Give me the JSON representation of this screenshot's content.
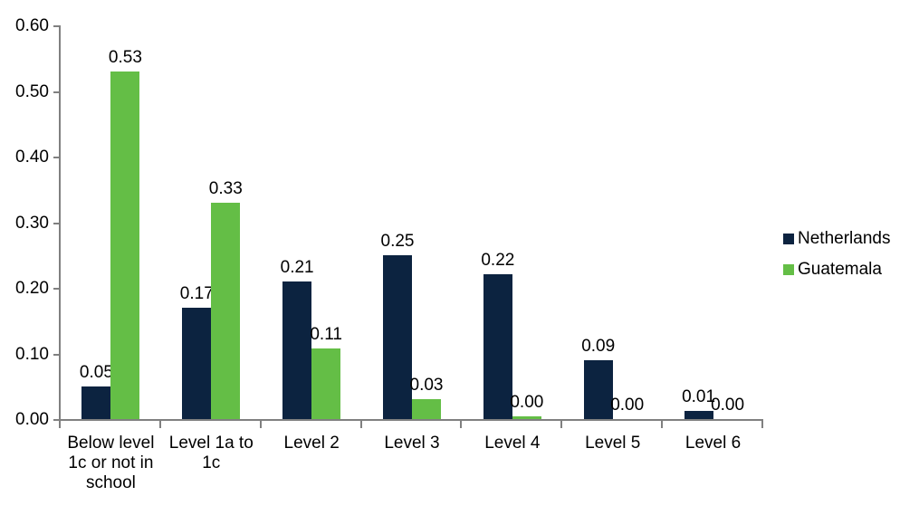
{
  "chart_data": {
    "type": "bar",
    "title": "",
    "xlabel": "",
    "ylabel": "",
    "categories": [
      "Below level 1c or not in school",
      "Level 1a to 1c",
      "Level 2",
      "Level 3",
      "Level 4",
      "Level 5",
      "Level 6"
    ],
    "category_display_lines": [
      [
        "Below level",
        "1c or not in",
        "school"
      ],
      [
        "Level 1a to",
        "1c"
      ],
      [
        "Level 2"
      ],
      [
        "Level 3"
      ],
      [
        "Level 4"
      ],
      [
        "Level 5"
      ],
      [
        "Level 6"
      ]
    ],
    "series": [
      {
        "name": "Netherlands",
        "color": "#0c2340",
        "values": [
          0.05,
          0.17,
          0.21,
          0.25,
          0.22,
          0.09,
          0.012
        ],
        "labels": [
          "0.05",
          "0.17",
          "0.21",
          "0.25",
          "0.22",
          "0.09",
          "0.01"
        ]
      },
      {
        "name": "Guatemala",
        "color": "#64be46",
        "values": [
          0.53,
          0.33,
          0.107,
          0.031,
          0.004,
          0,
          0
        ],
        "labels": [
          "0.53",
          "0.33",
          "0.11",
          "0.03",
          "0.00",
          "0.00",
          "0.00"
        ]
      }
    ],
    "ylim": [
      0,
      0.6
    ],
    "ytick_values": [
      0,
      0.1,
      0.2,
      0.3,
      0.4,
      0.5,
      0.6
    ],
    "ytick_labels": [
      "0.00",
      "0.10",
      "0.20",
      "0.30",
      "0.40",
      "0.50",
      "0.60"
    ],
    "grid": false,
    "legend_position": "right",
    "axis_color": "#808080",
    "text_color": "#000000"
  }
}
